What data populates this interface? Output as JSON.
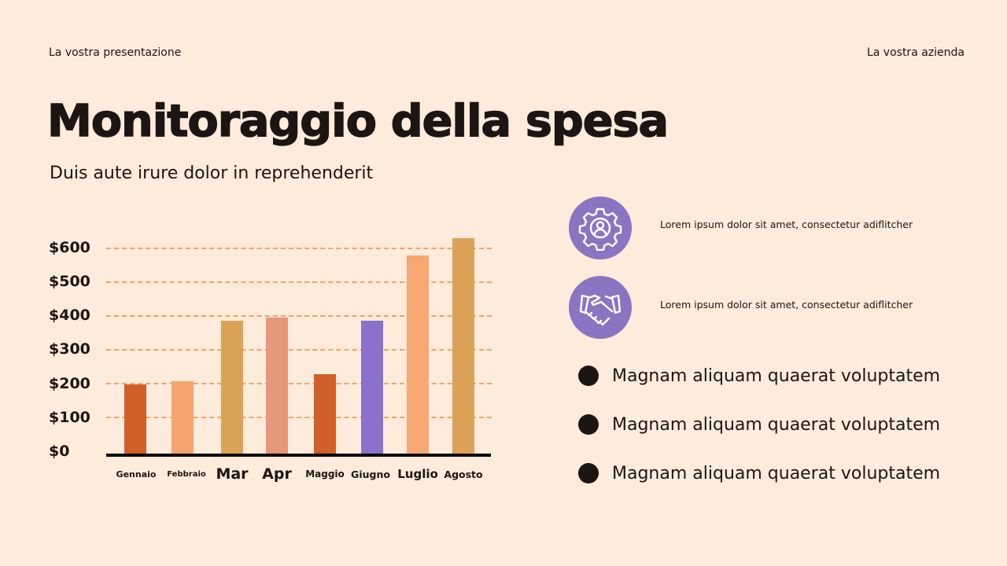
{
  "header": {
    "left": "La vostra presentazione",
    "right": "La vostra azienda"
  },
  "title": "Monitoraggio della spesa",
  "subtitle": "Duis aute irure dolor in reprehenderit",
  "chart_data": {
    "type": "bar",
    "title": "",
    "xlabel": "",
    "ylabel": "",
    "categories": [
      "Gennaio",
      "Febbraio",
      "Mar",
      "Apr",
      "Maggio",
      "Giugno",
      "Luglio",
      "Agosto"
    ],
    "values": [
      205,
      215,
      390,
      400,
      235,
      390,
      580,
      630
    ],
    "colors": [
      "#d05f28",
      "#f6a56e",
      "#dba257",
      "#e6967a",
      "#d05f28",
      "#8b71c9",
      "#f5a872",
      "#dba257"
    ],
    "yticks": [
      "$0",
      "$100",
      "$200",
      "$300",
      "$400",
      "$500",
      "$600"
    ],
    "ylim": [
      0,
      600
    ],
    "grid": true,
    "grid_style": "dashed",
    "legend": null
  },
  "features": [
    {
      "icon": "gear-person-icon",
      "text": "Lorem ipsum dolor sit amet, consectetur adiflitcher"
    },
    {
      "icon": "handshake-icon",
      "text": "Lorem ipsum dolor sit amet, consectetur adiflitcher"
    }
  ],
  "bullets": [
    "Magnam aliquam quaerat voluptatem",
    "Magnam aliquam quaerat voluptatem",
    "Magnam aliquam quaerat voluptatem"
  ],
  "colors": {
    "background": "#fdebdb",
    "text": "#1d1512",
    "accent_purple": "#8b74c1",
    "grid": "#eea56a"
  }
}
